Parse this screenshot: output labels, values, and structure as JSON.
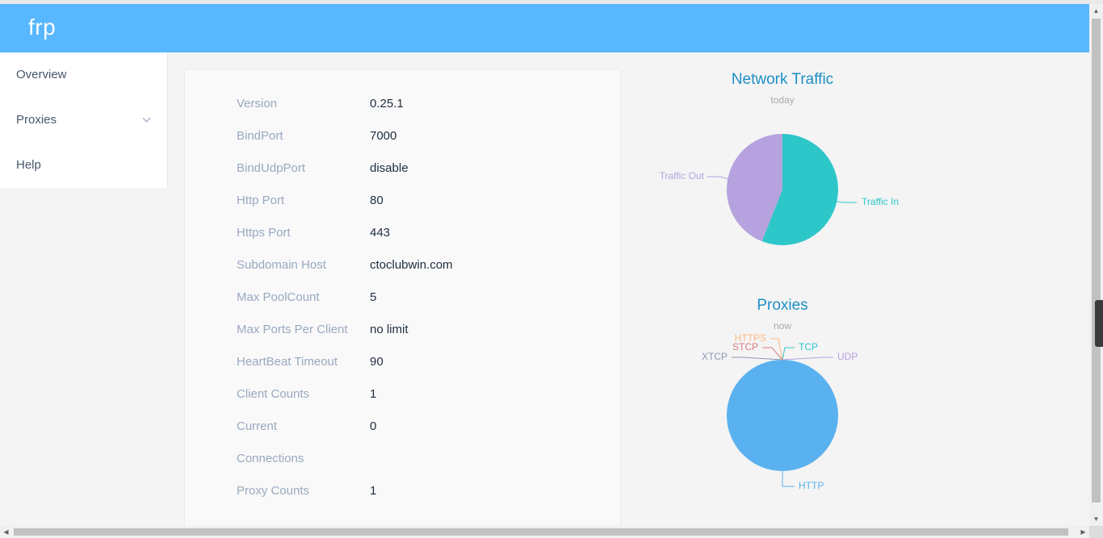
{
  "header": {
    "brand": "frp"
  },
  "sidebar": {
    "items": [
      {
        "label": "Overview"
      },
      {
        "label": "Proxies"
      },
      {
        "label": "Help"
      }
    ]
  },
  "overview": {
    "rows": [
      {
        "key": "Version",
        "value": "0.25.1"
      },
      {
        "key": "BindPort",
        "value": "7000"
      },
      {
        "key": "BindUdpPort",
        "value": "disable"
      },
      {
        "key": "Http Port",
        "value": "80"
      },
      {
        "key": "Https Port",
        "value": "443"
      },
      {
        "key": "Subdomain Host",
        "value": "ctoclubwin.com"
      },
      {
        "key": "Max PoolCount",
        "value": "5"
      },
      {
        "key": "Max Ports Per Client",
        "value": "no limit"
      },
      {
        "key": "HeartBeat Timeout",
        "value": "90"
      },
      {
        "key": "Client Counts",
        "value": "1"
      },
      {
        "key": "Current",
        "value": "0"
      },
      {
        "key": "Connections",
        "value": ""
      },
      {
        "key": "Proxy Counts",
        "value": "1"
      }
    ]
  },
  "chart_data": [
    {
      "type": "pie",
      "title": "Network Traffic",
      "subtitle": "today",
      "slices": [
        {
          "label": "Traffic In",
          "value": 56,
          "color": "#2ec7c9"
        },
        {
          "label": "Traffic Out",
          "value": 44,
          "color": "#b6a2de"
        }
      ]
    },
    {
      "type": "pie",
      "title": "Proxies",
      "subtitle": "now",
      "slices": [
        {
          "label": "TCP",
          "value": 0,
          "color": "#2ec7c9"
        },
        {
          "label": "UDP",
          "value": 0,
          "color": "#b6a2de"
        },
        {
          "label": "HTTP",
          "value": 1,
          "color": "#5ab1ef"
        },
        {
          "label": "HTTPS",
          "value": 0,
          "color": "#ffb980"
        },
        {
          "label": "STCP",
          "value": 0,
          "color": "#d87a80"
        },
        {
          "label": "XTCP",
          "value": 0,
          "color": "#8d98b3"
        }
      ]
    }
  ]
}
